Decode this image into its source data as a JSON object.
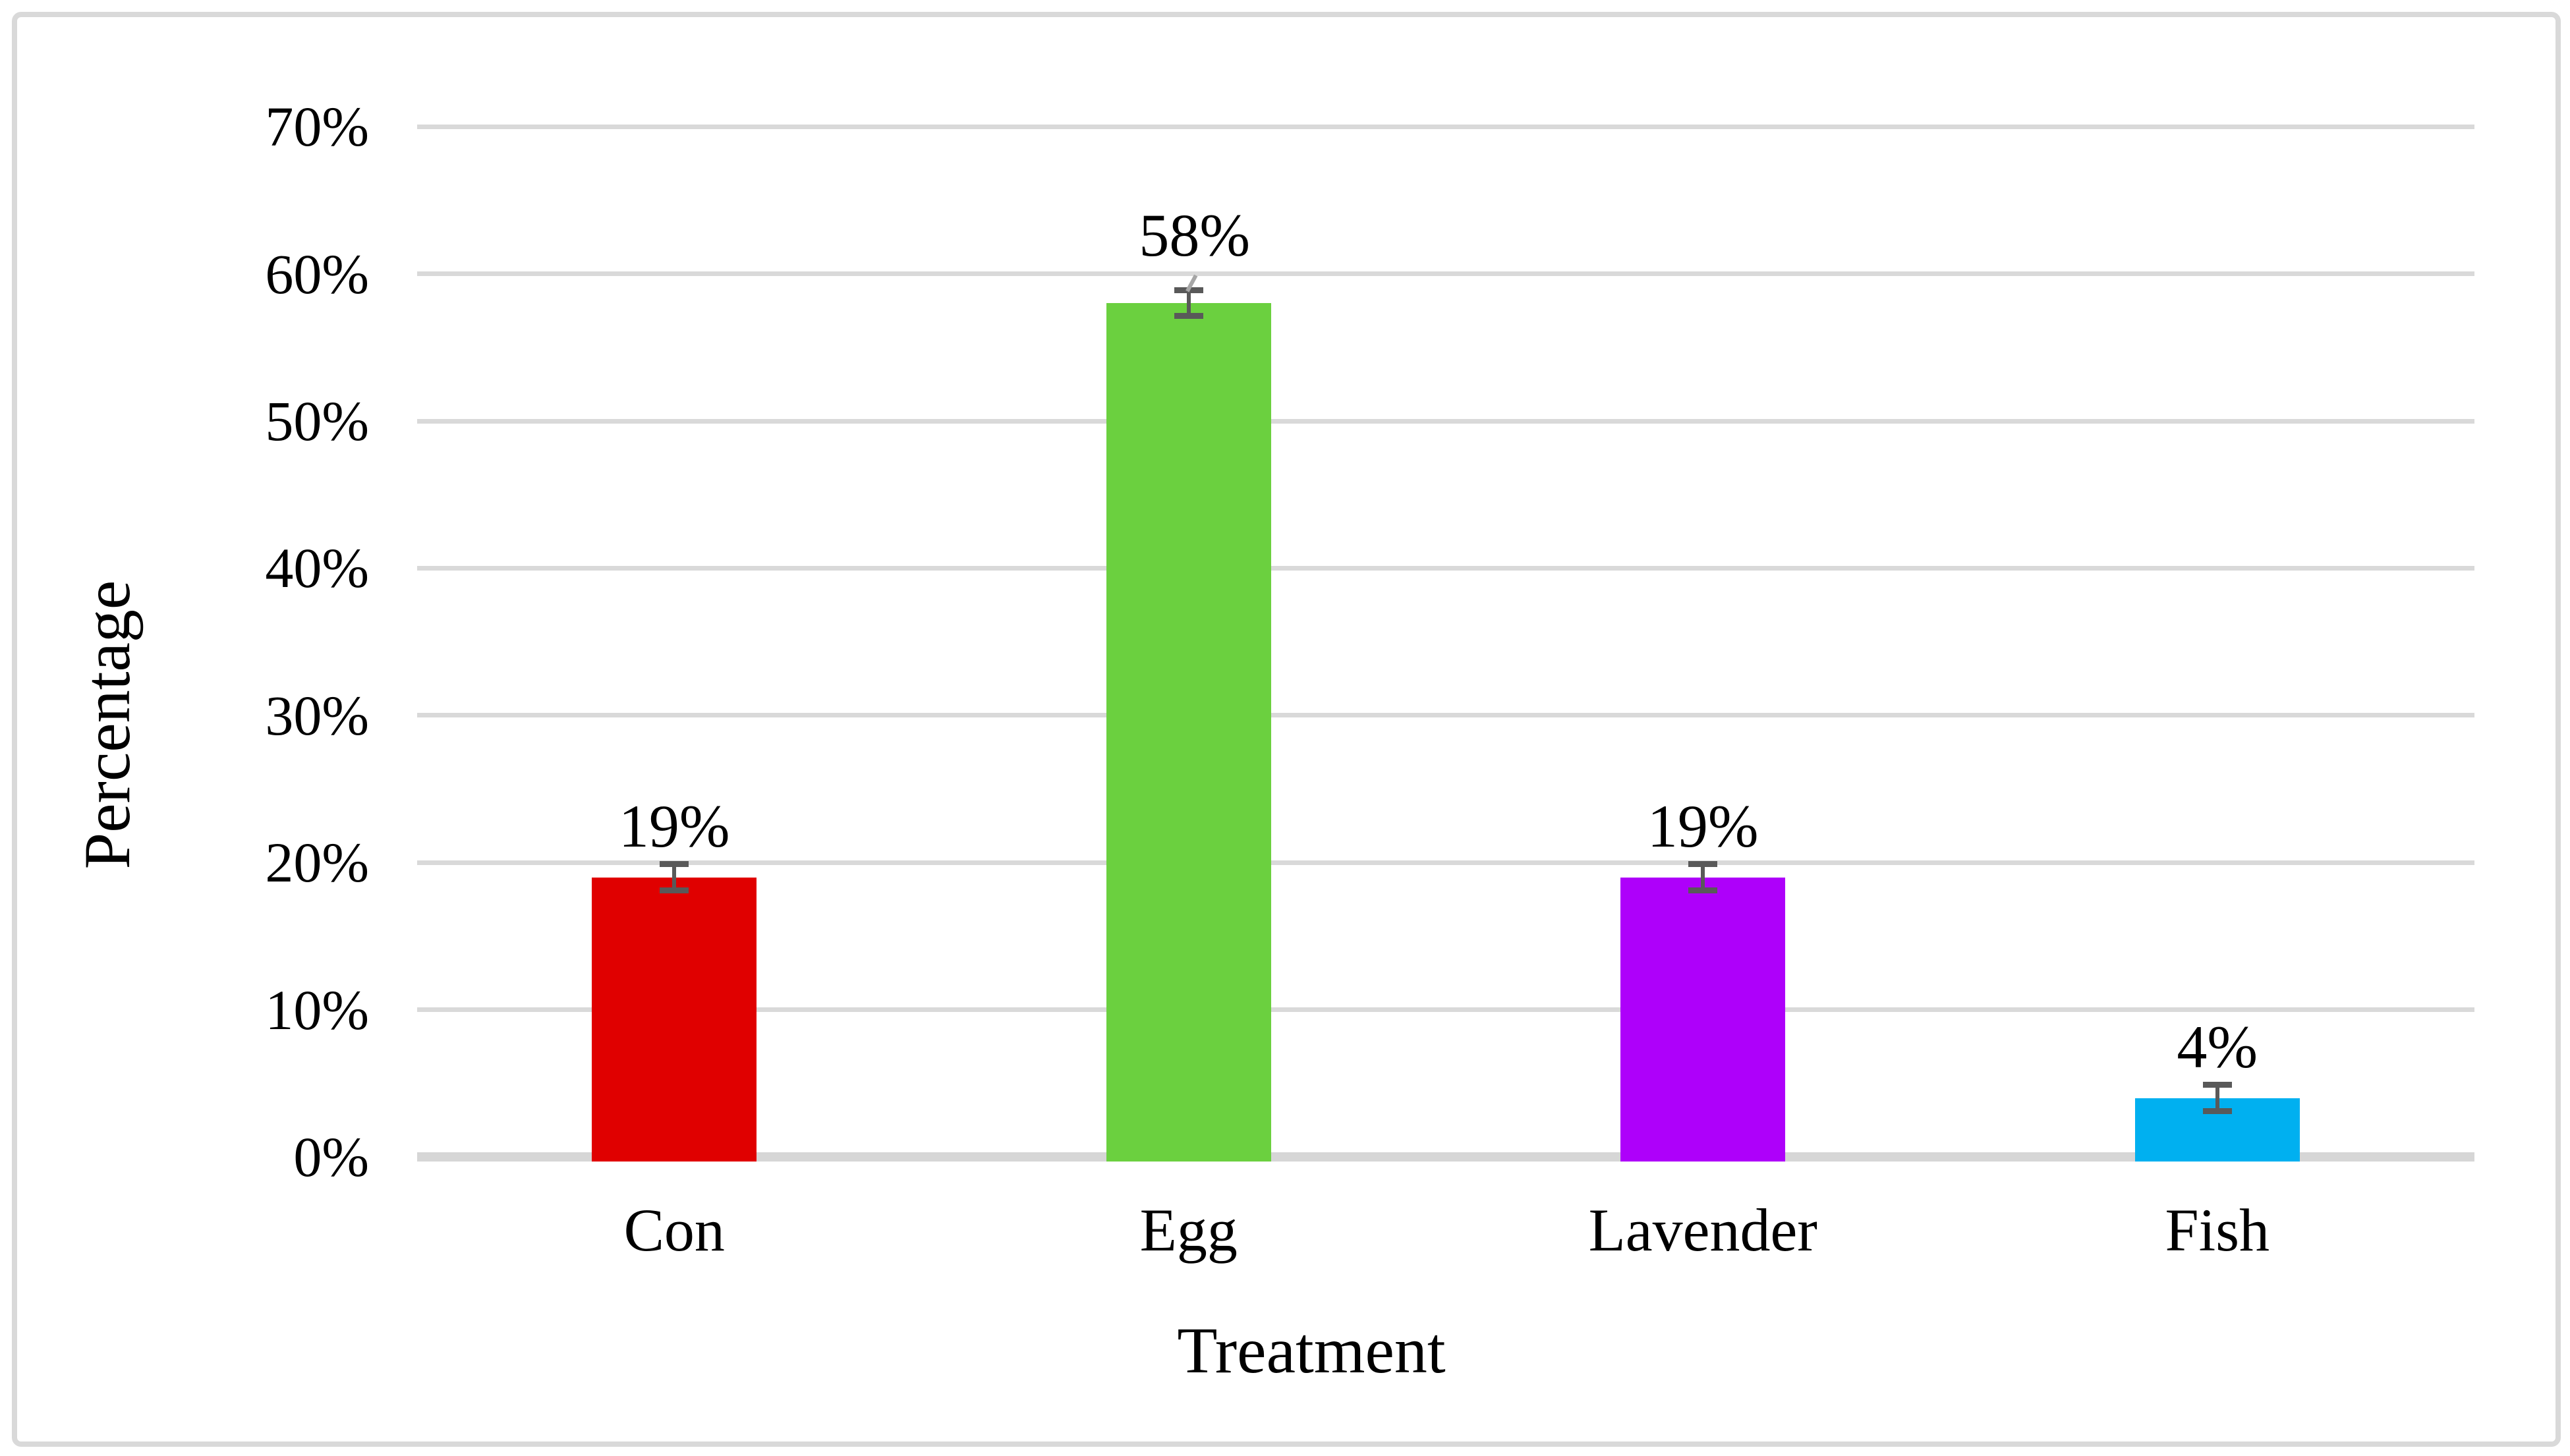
{
  "chart_data": {
    "type": "bar",
    "categories": [
      "Con",
      "Egg",
      "Lavender",
      "Fish"
    ],
    "values": [
      19,
      58,
      19,
      4
    ],
    "data_labels": [
      "19%",
      "58%",
      "19%",
      "4%"
    ],
    "bar_colors": [
      "#E00000",
      "#6BD03F",
      "#AE00FA",
      "#00B0F0"
    ],
    "xlabel": "Treatment",
    "ylabel": "Percentage",
    "yticks": [
      "0%",
      "10%",
      "20%",
      "30%",
      "40%",
      "50%",
      "60%",
      "70%"
    ],
    "ylim": [
      0,
      70
    ],
    "ytick_step": 10,
    "grid": "horizontal",
    "legend": "none",
    "error_bars": {
      "plus_minus_pct": 0.5,
      "color": "#595959"
    },
    "leader_line": {
      "series_index": 1,
      "color": "#A6A6A6"
    },
    "colors": {
      "gridline": "#D9D9D9",
      "axis_line": "#D6D6D6",
      "frame_border": "#D9D9D9",
      "background": "#FFFFFF",
      "text": "#000000"
    }
  }
}
